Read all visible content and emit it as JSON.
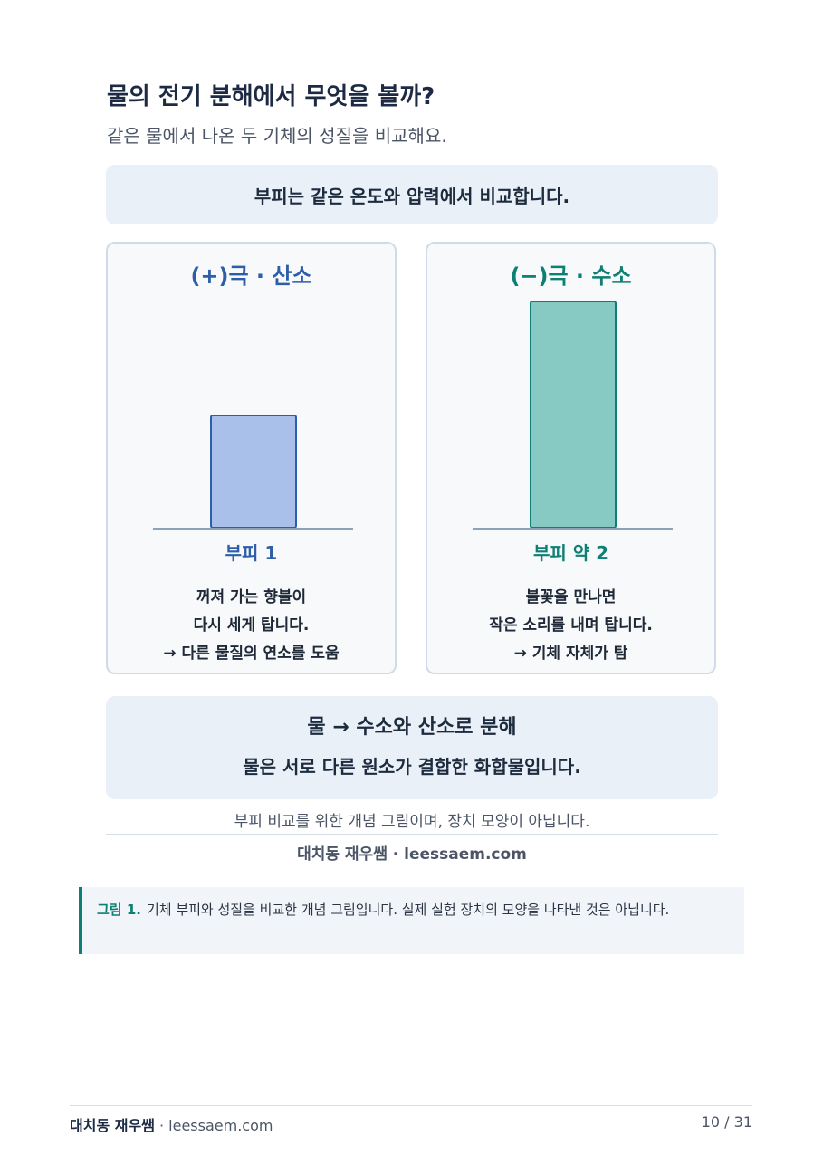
{
  "header": {
    "title": "물의 전기 분해에서 무엇을 볼까?",
    "subtitle": "같은 물에서 나온 두 기체의 성질을 비교해요."
  },
  "figure": {
    "notice": "부피는 같은 온도와 압력에서 비교합니다.",
    "panels": [
      {
        "title": "(+)극 · 산소",
        "volume": 1,
        "volume_label": "부피 1",
        "color": "#2f5ea8",
        "bar_fill": "#a9c0ea",
        "lines": [
          "꺼져 가는 향불이",
          "다시 세게 탑니다.",
          "→ 다른 물질의 연소를 도움"
        ]
      },
      {
        "title": "(−)극 · 수소",
        "volume": 2,
        "volume_label": "부피 약 2",
        "color": "#0e7f74",
        "bar_fill": "#86cac3",
        "lines": [
          "불꽃을 만나면",
          "작은 소리를 내며 탑니다.",
          "→ 기체 자체가 탐"
        ]
      }
    ],
    "summary": {
      "headline": "물 → 수소와 산소로 분해",
      "detail": "물은 서로 다른 원소가 결합한 화합물입니다."
    },
    "note": "부피 비교를 위한 개념 그림이며, 장치 모양이 아닙니다.",
    "credit": "대치동 재우쌤 · leessaem.com"
  },
  "caption": {
    "label": "그림 1.",
    "text": "기체 부피와 성질을 비교한 개념 그림입니다. 실제 실험 장치의 모양을 나타낸 것은 아닙니다."
  },
  "footer": {
    "brand": "대치동 재우쌤",
    "site": "· leessaem.com",
    "page": "10 / 31"
  }
}
